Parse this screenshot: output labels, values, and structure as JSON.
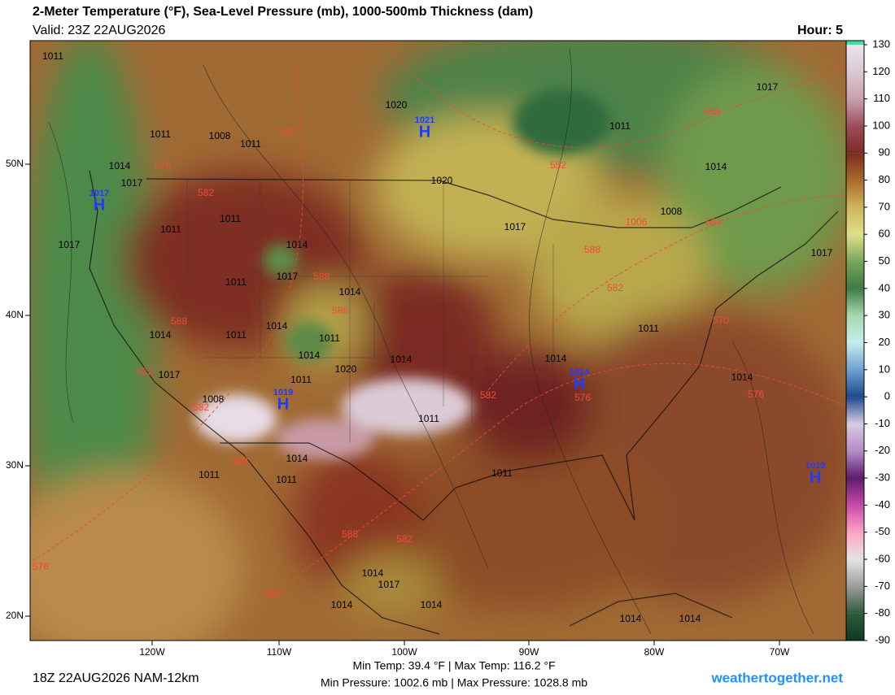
{
  "header": {
    "title": "2-Meter Temperature (°F), Sea-Level Pressure (mb), 1000-500mb Thickness (dam)",
    "valid": "Valid: 23Z 22AUG2026",
    "hour": "Hour: 5"
  },
  "axes": {
    "lon_labels": [
      "120W",
      "110W",
      "100W",
      "90W",
      "80W",
      "70W"
    ],
    "lat_labels": [
      "50N",
      "40N",
      "30N",
      "20N"
    ]
  },
  "colorbar": {
    "ticks": [
      130,
      120,
      110,
      100,
      90,
      80,
      70,
      60,
      50,
      40,
      30,
      20,
      10,
      0,
      -10,
      -20,
      -30,
      -40,
      -50,
      -60,
      -70,
      -80,
      -90
    ],
    "colors": [
      "#ece4ee",
      "#dcc8d4",
      "#c8a0b0",
      "#9a4e5a",
      "#7e2a22",
      "#a86a2c",
      "#cfb45a",
      "#e0e08a",
      "#7aa65a",
      "#3f7a44",
      "#a8d8b0",
      "#c8ecee",
      "#6ea0d0",
      "#1e4a8e",
      "#d8cce0",
      "#b48cc4",
      "#5e1a70",
      "#c84aa8",
      "#ffa4c4",
      "#e4e4e4",
      "#9c9c9c",
      "#2e5a3e",
      "#0e3a24"
    ],
    "bottom_color": "#40e0a0"
  },
  "isobar_labels": [
    "1011",
    "1011",
    "1008",
    "1011",
    "1014",
    "1017",
    "1017",
    "1011",
    "1011",
    "1014",
    "1017",
    "1011",
    "1014",
    "1014",
    "1011",
    "1014",
    "1011",
    "1014",
    "1020",
    "1017",
    "1008",
    "1011",
    "1011",
    "1014",
    "1014",
    "1014",
    "1011",
    "1011",
    "1017",
    "1020",
    "1020",
    "1017",
    "1014",
    "1008",
    "1017",
    "1011",
    "1014",
    "1011",
    "1014",
    "1017",
    "1014",
    "1014",
    "1014",
    "1014",
    "1011"
  ],
  "thickness_labels": [
    "576",
    "576",
    "582",
    "588",
    "588",
    "588",
    "582",
    "582",
    "588",
    "588",
    "582",
    "582",
    "576",
    "552",
    "558",
    "564",
    "570",
    "576",
    "582",
    "576",
    "588",
    "582",
    "1006"
  ],
  "highs": [
    {
      "pressure": "1021",
      "symbol": "H"
    },
    {
      "pressure": "1017",
      "symbol": "H"
    },
    {
      "pressure": "1019",
      "symbol": "H"
    },
    {
      "pressure": "1014",
      "symbol": "H"
    },
    {
      "pressure": "1019",
      "symbol": "H"
    }
  ],
  "footer": {
    "run": "18Z 22AUG2026 NAM-12km",
    "temp_range": "Min Temp: 39.4 °F | Max Temp: 116.2 °F",
    "pressure_range": "Min Pressure: 1002.6 mb | Max Pressure: 1028.8 mb",
    "site": "weathertogether.net"
  }
}
